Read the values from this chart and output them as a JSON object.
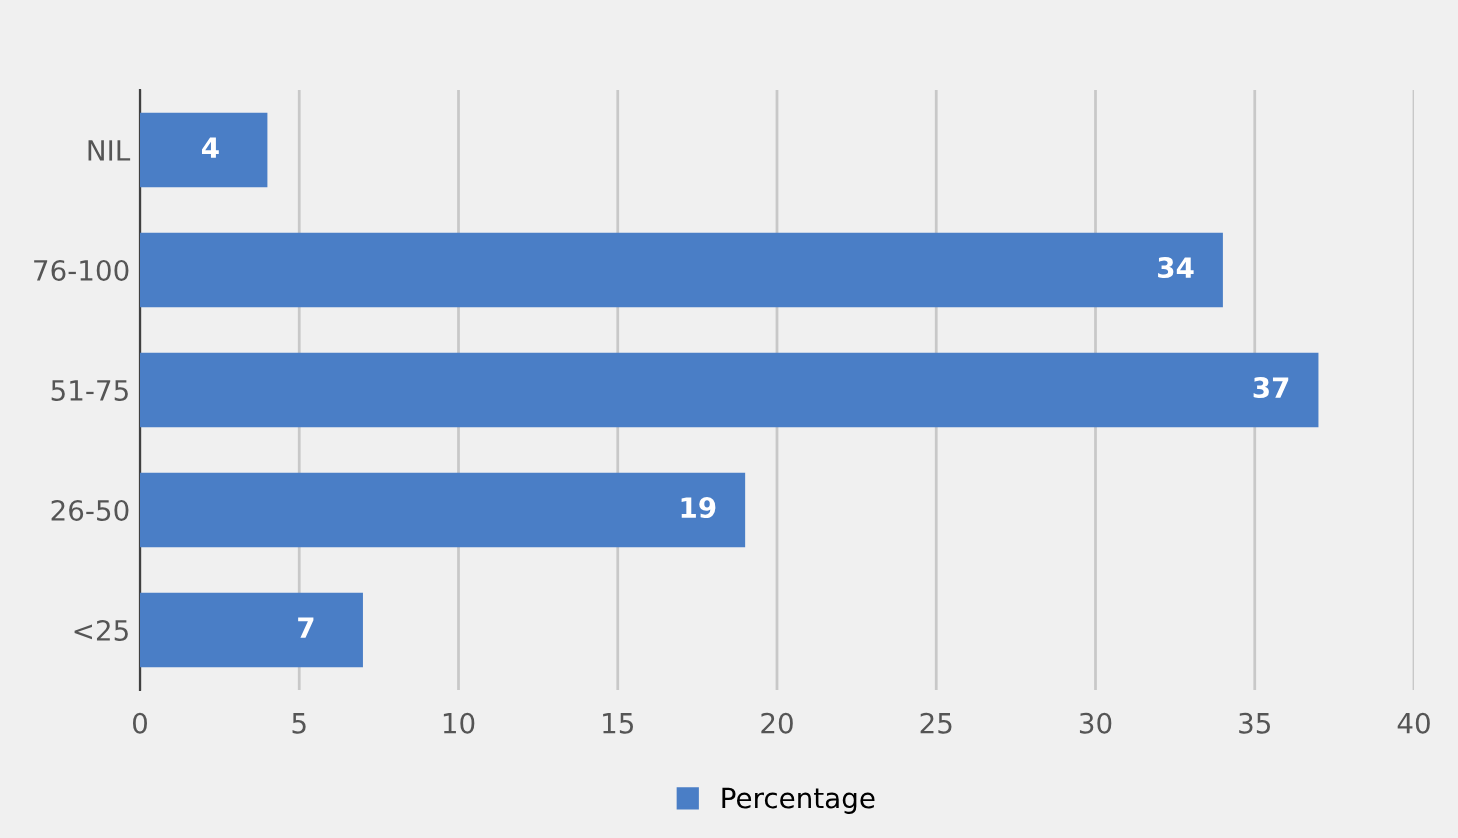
{
  "chart_data": {
    "type": "bar",
    "orientation": "horizontal",
    "categories": [
      "NIL",
      "76-100",
      "51-75",
      "26-50",
      "<25"
    ],
    "series": [
      {
        "name": "Percentage",
        "color": "#4a7ec6",
        "values": [
          4,
          34,
          37,
          19,
          7
        ]
      }
    ],
    "xlim": [
      0,
      40
    ],
    "xticks": [
      0,
      5,
      10,
      15,
      20,
      25,
      30,
      35,
      40
    ],
    "grid": "x",
    "legend": "bottom",
    "data_labels": true
  }
}
